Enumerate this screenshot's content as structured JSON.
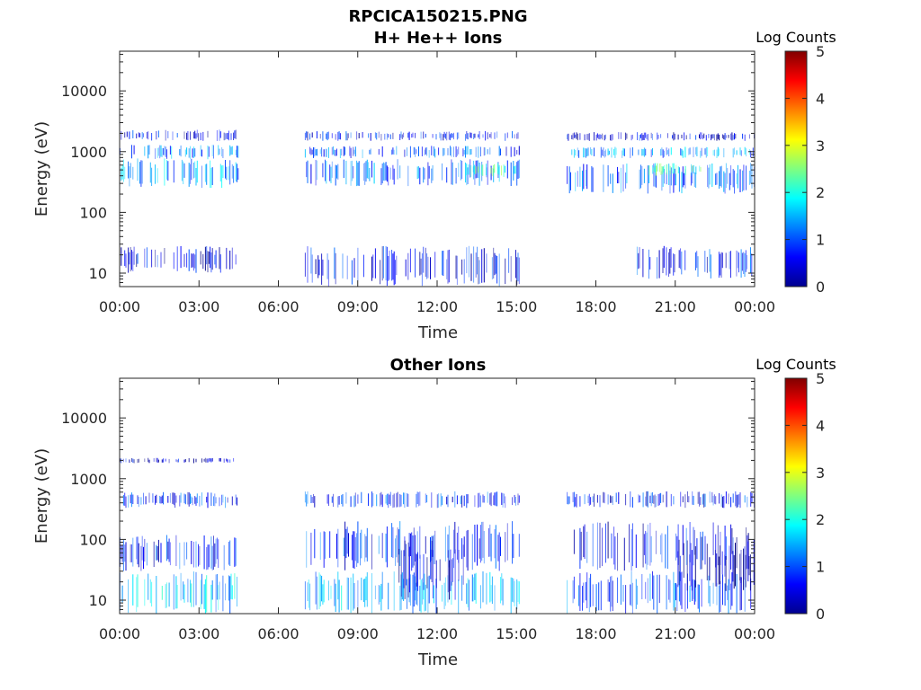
{
  "figure": {
    "title": "RPCICA150215.PNG"
  },
  "chart_data": [
    {
      "type": "heatmap",
      "title": "H+ He++ Ions",
      "xlabel": "Time",
      "ylabel": "Energy (eV)",
      "x_tick_labels": [
        "00:00",
        "03:00",
        "06:00",
        "09:00",
        "12:00",
        "15:00",
        "18:00",
        "21:00",
        "00:00"
      ],
      "x_range_hours": [
        0,
        24
      ],
      "y_scale": "log",
      "ylim": [
        6,
        45000
      ],
      "y_ticks": [
        10,
        100,
        1000,
        10000
      ],
      "y_tick_labels": [
        "10",
        "100",
        "1000",
        "10000"
      ],
      "colorbar": {
        "title": "Log Counts",
        "range": [
          0,
          5
        ],
        "ticks": [
          "0",
          "1",
          "2",
          "3",
          "4",
          "5"
        ],
        "colormap": "jet"
      },
      "data_gaps_hours": [
        [
          4.5,
          7.0
        ],
        [
          15.1,
          16.9
        ]
      ],
      "bands": [
        {
          "t0": 0.0,
          "t1": 4.5,
          "e0": 250,
          "e1": 800,
          "level": 1.4
        },
        {
          "t0": 0.0,
          "t1": 4.5,
          "e0": 750,
          "e1": 1300,
          "level": 1.2
        },
        {
          "t0": 0.0,
          "t1": 4.5,
          "e0": 1500,
          "e1": 2300,
          "level": 0.6
        },
        {
          "t0": 0.0,
          "t1": 4.5,
          "e0": 10,
          "e1": 28,
          "level": 0.5
        },
        {
          "t0": 7.0,
          "t1": 15.1,
          "e0": 270,
          "e1": 750,
          "level": 1.1
        },
        {
          "t0": 7.0,
          "t1": 15.1,
          "e0": 780,
          "e1": 1250,
          "level": 1.0
        },
        {
          "t0": 7.0,
          "t1": 15.1,
          "e0": 1500,
          "e1": 2200,
          "level": 0.6
        },
        {
          "t0": 7.0,
          "t1": 15.1,
          "e0": 6,
          "e1": 28,
          "level": 0.6
        },
        {
          "t0": 13.0,
          "t1": 15.1,
          "e0": 380,
          "e1": 650,
          "level": 2.2
        },
        {
          "t0": 16.9,
          "t1": 24.0,
          "e0": 200,
          "e1": 650,
          "level": 1.1
        },
        {
          "t0": 16.9,
          "t1": 24.0,
          "e0": 780,
          "e1": 1200,
          "level": 1.3
        },
        {
          "t0": 16.9,
          "t1": 24.0,
          "e0": 1500,
          "e1": 2100,
          "level": 0.5
        },
        {
          "t0": 19.5,
          "t1": 24.0,
          "e0": 8,
          "e1": 28,
          "level": 0.7
        },
        {
          "t0": 20.0,
          "t1": 22.0,
          "e0": 400,
          "e1": 650,
          "level": 2.2
        }
      ]
    },
    {
      "type": "heatmap",
      "title": "Other Ions",
      "xlabel": "Time",
      "ylabel": "Energy (eV)",
      "x_tick_labels": [
        "00:00",
        "03:00",
        "06:00",
        "09:00",
        "12:00",
        "15:00",
        "18:00",
        "21:00",
        "00:00"
      ],
      "x_range_hours": [
        0,
        24
      ],
      "y_scale": "log",
      "ylim": [
        6,
        45000
      ],
      "y_ticks": [
        10,
        100,
        1000,
        10000
      ],
      "y_tick_labels": [
        "10",
        "100",
        "1000",
        "10000"
      ],
      "colorbar": {
        "title": "Log Counts",
        "range": [
          0,
          5
        ],
        "ticks": [
          "0",
          "1",
          "2",
          "3",
          "4",
          "5"
        ],
        "colormap": "jet"
      },
      "data_gaps_hours": [
        [
          4.5,
          7.0
        ],
        [
          15.1,
          16.9
        ]
      ],
      "bands": [
        {
          "t0": 0.0,
          "t1": 4.5,
          "e0": 330,
          "e1": 600,
          "level": 0.8
        },
        {
          "t0": 0.0,
          "t1": 4.5,
          "e0": 1800,
          "e1": 2200,
          "level": 0.4
        },
        {
          "t0": 0.0,
          "t1": 4.5,
          "e0": 6,
          "e1": 30,
          "level": 1.6
        },
        {
          "t0": 0.0,
          "t1": 4.5,
          "e0": 30,
          "e1": 120,
          "level": 0.7
        },
        {
          "t0": 7.0,
          "t1": 15.1,
          "e0": 330,
          "e1": 620,
          "level": 0.8
        },
        {
          "t0": 7.0,
          "t1": 15.1,
          "e0": 6,
          "e1": 30,
          "level": 1.5
        },
        {
          "t0": 7.0,
          "t1": 15.1,
          "e0": 30,
          "e1": 200,
          "level": 0.8
        },
        {
          "t0": 10.5,
          "t1": 13.0,
          "e0": 10,
          "e1": 100,
          "level": 0.3
        },
        {
          "t0": 16.9,
          "t1": 24.0,
          "e0": 330,
          "e1": 620,
          "level": 0.7
        },
        {
          "t0": 16.9,
          "t1": 24.0,
          "e0": 6,
          "e1": 30,
          "level": 1.0
        },
        {
          "t0": 16.9,
          "t1": 24.0,
          "e0": 30,
          "e1": 200,
          "level": 0.6
        },
        {
          "t0": 21.0,
          "t1": 24.0,
          "e0": 14,
          "e1": 100,
          "level": 0.2
        }
      ]
    }
  ]
}
